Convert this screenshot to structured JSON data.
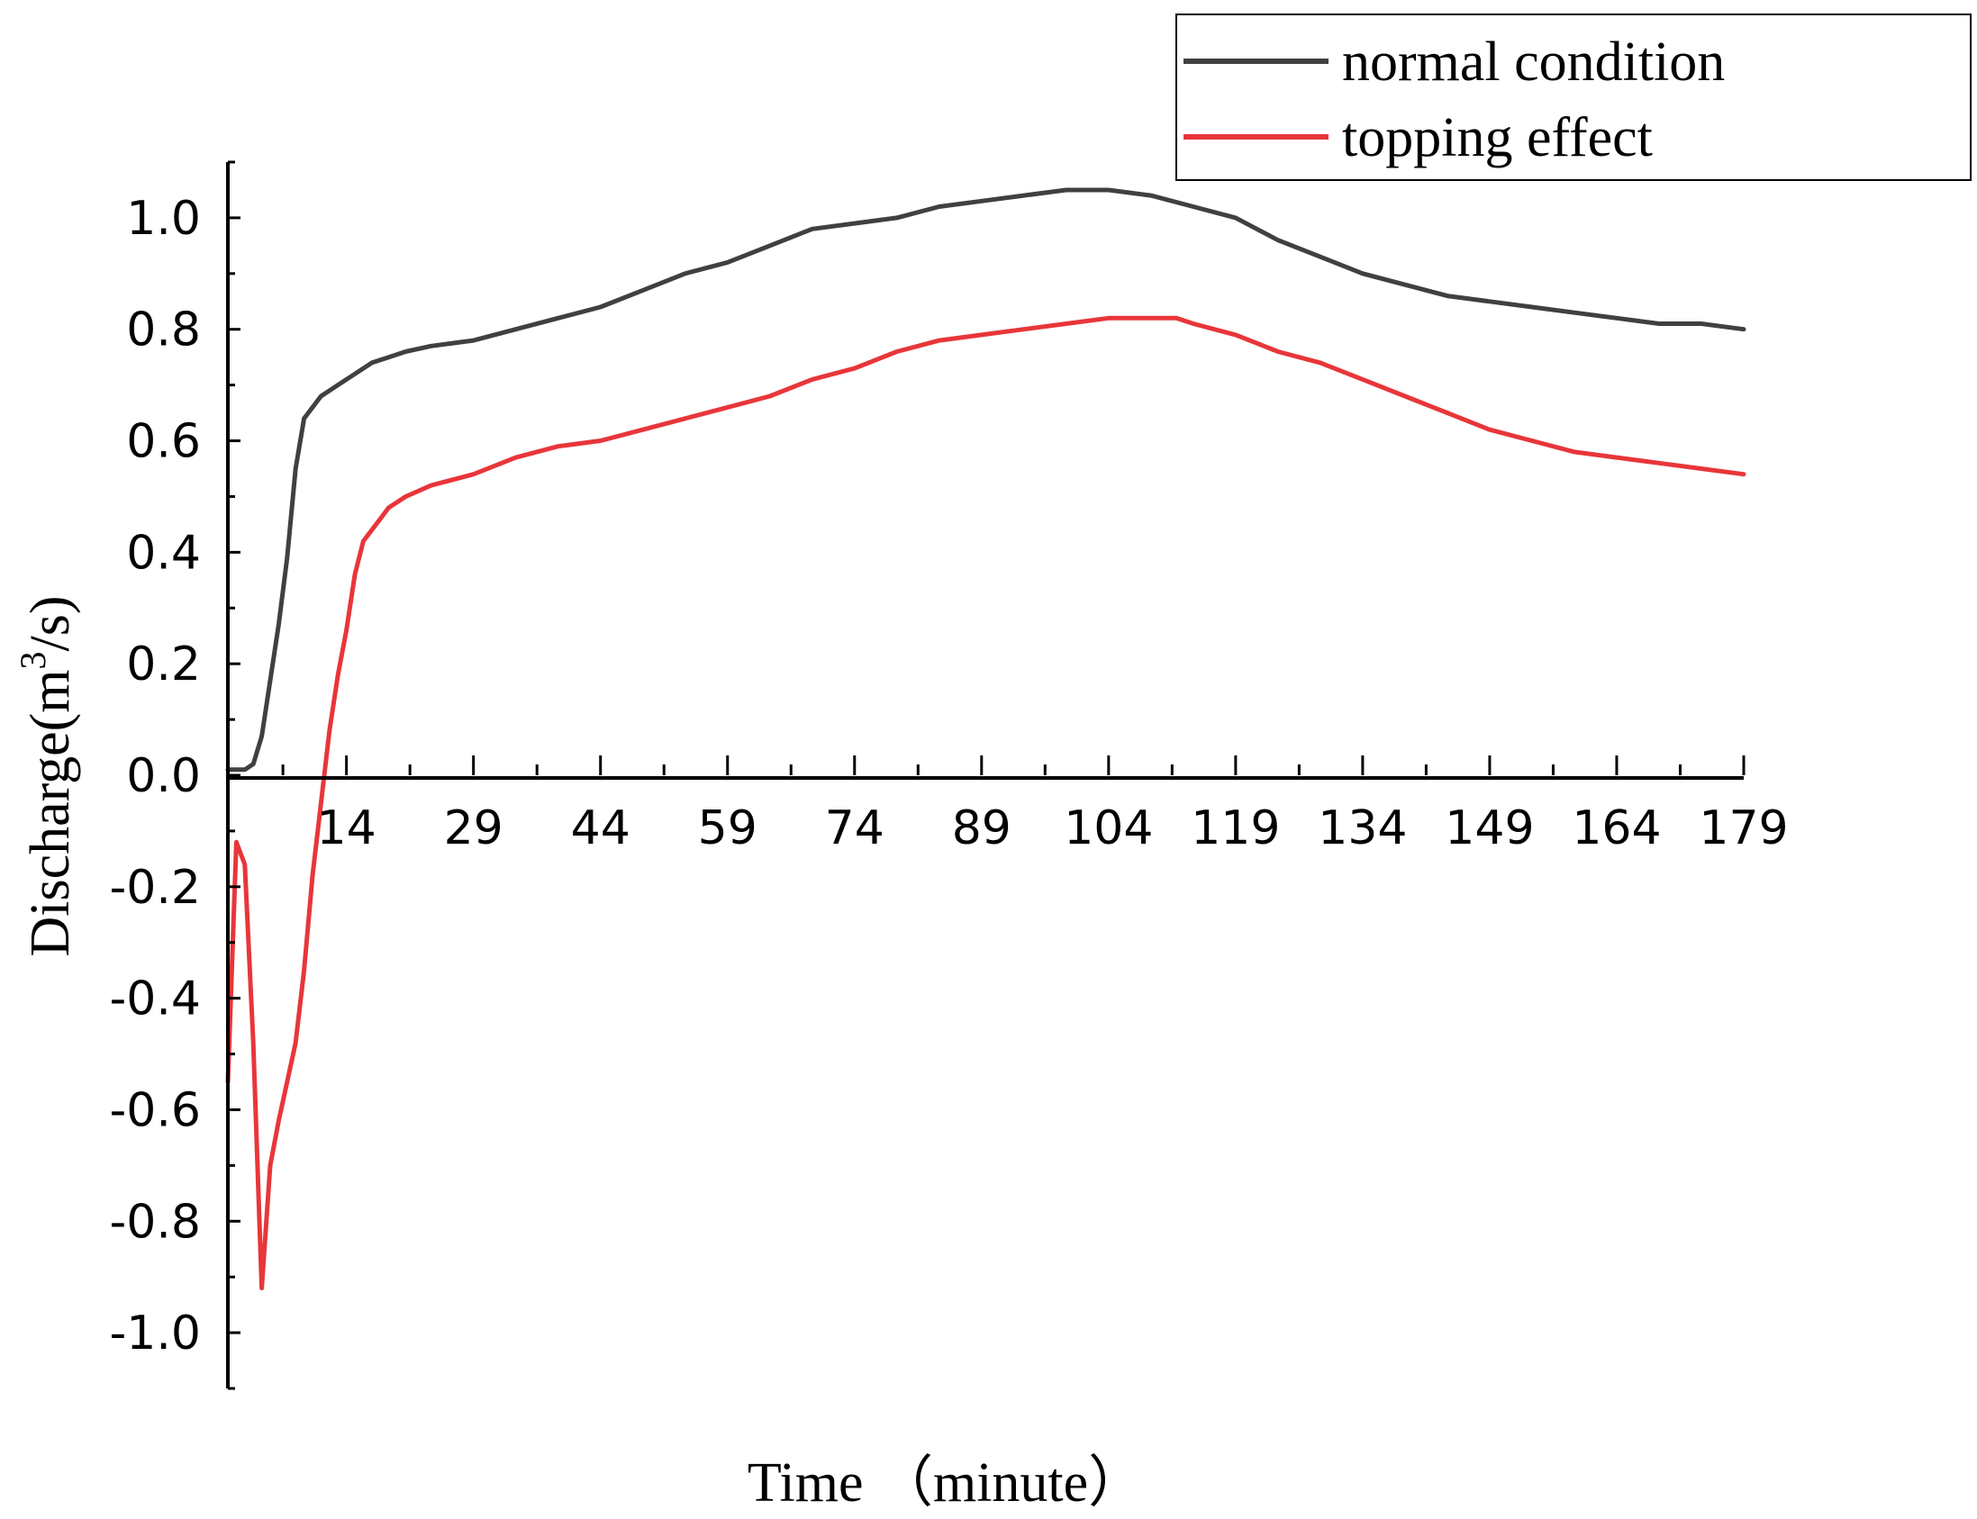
{
  "chart_data": {
    "type": "line",
    "title": "",
    "xlabel": "Time （minute）",
    "ylabel": "Discharge(m³/s)",
    "ylabel_parts": {
      "main": "Discharge(m",
      "sup": "3",
      "tail": "/s)"
    },
    "xlim": [
      0,
      179
    ],
    "ylim": [
      -1.1,
      1.1
    ],
    "x_ticks": [
      14,
      29,
      44,
      59,
      74,
      89,
      104,
      119,
      134,
      149,
      164,
      179
    ],
    "y_ticks": [
      1.0,
      0.8,
      0.6,
      0.4,
      0.2,
      0.0,
      -0.2,
      -0.4,
      -0.6,
      -0.8,
      -1.0
    ],
    "y_tick_labels": [
      "1.0",
      "0.8",
      "0.6",
      "0.4",
      "0.2",
      "0.0",
      "-0.2",
      "-0.4",
      "-0.6",
      "-0.8",
      "-1.0"
    ],
    "legend_position": "top-right",
    "series": [
      {
        "name": "normal condition",
        "color": "#404040",
        "x": [
          0,
          2,
          3,
          4,
          5,
          6,
          7,
          8,
          9,
          10,
          11,
          12,
          13,
          14,
          15,
          17,
          19,
          21,
          24,
          29,
          34,
          39,
          44,
          49,
          54,
          59,
          64,
          69,
          74,
          79,
          84,
          89,
          94,
          99,
          104,
          109,
          114,
          119,
          124,
          129,
          134,
          139,
          144,
          149,
          154,
          159,
          164,
          169,
          174,
          179
        ],
        "values": [
          0.01,
          0.01,
          0.02,
          0.07,
          0.17,
          0.27,
          0.39,
          0.55,
          0.64,
          0.66,
          0.68,
          0.69,
          0.7,
          0.71,
          0.72,
          0.74,
          0.75,
          0.76,
          0.77,
          0.78,
          0.8,
          0.82,
          0.84,
          0.87,
          0.9,
          0.92,
          0.95,
          0.98,
          0.99,
          1.0,
          1.02,
          1.03,
          1.04,
          1.05,
          1.05,
          1.04,
          1.02,
          1.0,
          0.96,
          0.93,
          0.9,
          0.88,
          0.86,
          0.85,
          0.84,
          0.83,
          0.82,
          0.81,
          0.81,
          0.8
        ]
      },
      {
        "name": "topping effect",
        "color": "#e8363a",
        "x": [
          0,
          1,
          2,
          3,
          4,
          5,
          6,
          7,
          8,
          9,
          10,
          11,
          12,
          13,
          14,
          15,
          16,
          17,
          18,
          19,
          21,
          24,
          29,
          34,
          39,
          44,
          49,
          54,
          59,
          64,
          69,
          74,
          79,
          84,
          89,
          94,
          99,
          104,
          109,
          112,
          114,
          119,
          124,
          129,
          134,
          139,
          144,
          149,
          154,
          159,
          164,
          169,
          174,
          179
        ],
        "values": [
          -0.55,
          -0.12,
          -0.16,
          -0.48,
          -0.92,
          -0.7,
          -0.62,
          -0.55,
          -0.48,
          -0.35,
          -0.18,
          -0.05,
          0.08,
          0.18,
          0.26,
          0.36,
          0.42,
          0.44,
          0.46,
          0.48,
          0.5,
          0.52,
          0.54,
          0.57,
          0.59,
          0.6,
          0.62,
          0.64,
          0.66,
          0.68,
          0.71,
          0.73,
          0.76,
          0.78,
          0.79,
          0.8,
          0.81,
          0.82,
          0.82,
          0.82,
          0.81,
          0.79,
          0.76,
          0.74,
          0.71,
          0.68,
          0.65,
          0.62,
          0.6,
          0.58,
          0.57,
          0.56,
          0.55,
          0.54
        ]
      }
    ]
  }
}
